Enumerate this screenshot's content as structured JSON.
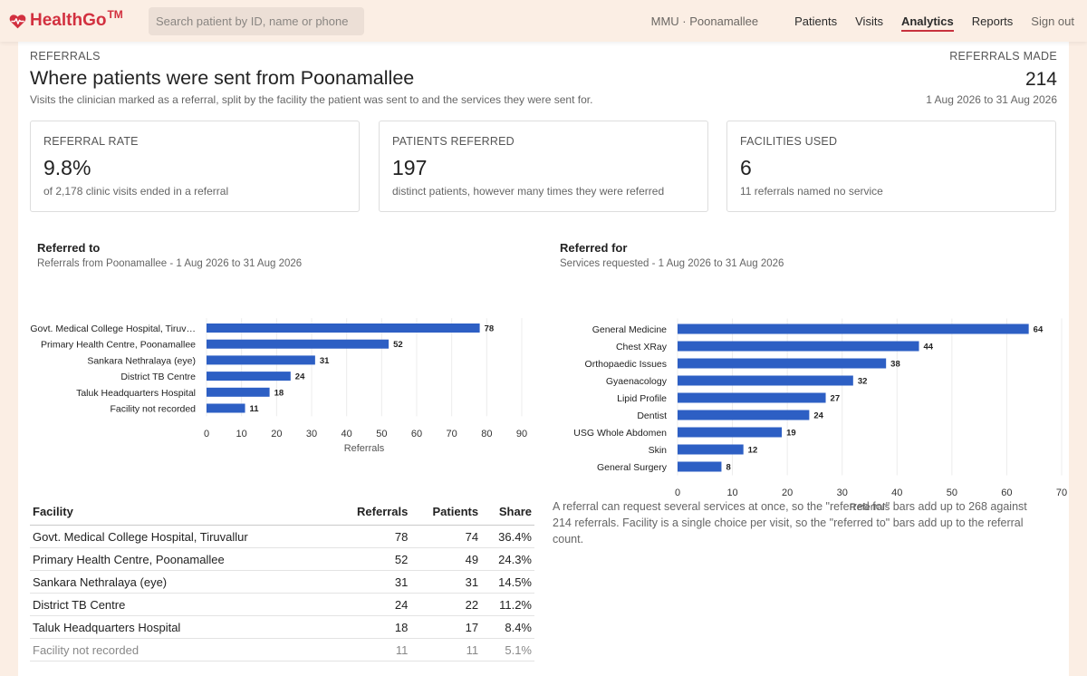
{
  "brand": {
    "name": "HealthGo",
    "tm": "TM",
    "icon": "heart-pulse-icon",
    "color": "#d2303f"
  },
  "search": {
    "placeholder": "Search patient by ID, name or phone",
    "value": ""
  },
  "nav": {
    "location": "MMU · Poonamallee",
    "items": [
      {
        "label": "Patients",
        "active": false
      },
      {
        "label": "Visits",
        "active": false
      },
      {
        "label": "Analytics",
        "active": true
      },
      {
        "label": "Reports",
        "active": false
      }
    ],
    "sign_out": "Sign out"
  },
  "header": {
    "kicker": "REFERRALS",
    "title": "Where patients were sent from Poonamallee",
    "subtitle": "Visits the clinician marked as a referral, split by the facility the patient was sent to and the services they were sent for.",
    "made_label": "REFERRALS MADE",
    "made_value": "214",
    "date_range": "1 Aug 2026 to 31 Aug 2026"
  },
  "cards": [
    {
      "label": "REFERRAL RATE",
      "value": "9.8%",
      "note": "of 2,178 clinic visits ended in a referral"
    },
    {
      "label": "PATIENTS REFERRED",
      "value": "197",
      "note": "distinct patients, however many times they were referred"
    },
    {
      "label": "FACILITIES USED",
      "value": "6",
      "note": "11 referrals named no service"
    }
  ],
  "charts": {
    "referred_to": {
      "title": "Referred to",
      "subtitle": "Referrals from Poonamallee - 1 Aug 2026 to 31 Aug 2026"
    },
    "referred_for": {
      "title": "Referred for",
      "subtitle": "Services requested - 1 Aug 2026 to 31 Aug 2026"
    }
  },
  "chart_data": [
    {
      "type": "bar",
      "orientation": "horizontal",
      "categories": [
        "Govt. Medical College Hospital, Tiruv…",
        "Primary Health Centre, Poonamallee",
        "Sankara Nethralaya (eye)",
        "District TB Centre",
        "Taluk Headquarters Hospital",
        "Facility not recorded"
      ],
      "values": [
        78,
        52,
        31,
        24,
        18,
        11
      ],
      "title": "Referred to",
      "subtitle": "Referrals from Poonamallee - 1 Aug 2026 to 31 Aug 2026",
      "xlabel": "Referrals",
      "xlim": [
        0,
        90
      ],
      "xticks": [
        0,
        10,
        20,
        30,
        40,
        50,
        60,
        70,
        80,
        90
      ],
      "grid": true,
      "data_labels": true,
      "color": "#2d5fc4"
    },
    {
      "type": "bar",
      "orientation": "horizontal",
      "categories": [
        "General Medicine",
        "Chest XRay",
        "Orthopaedic Issues",
        "Gyaenacology",
        "Lipid Profile",
        "Dentist",
        "USG Whole Abdomen",
        "Skin",
        "General Surgery"
      ],
      "values": [
        64,
        44,
        38,
        32,
        27,
        24,
        19,
        12,
        8
      ],
      "title": "Referred for",
      "subtitle": "Services requested - 1 Aug 2026 to 31 Aug 2026",
      "xlabel": "Referrals",
      "xlim": [
        0,
        70
      ],
      "xticks": [
        0,
        10,
        20,
        30,
        40,
        50,
        60,
        70
      ],
      "grid": true,
      "data_labels": true,
      "color": "#2d5fc4"
    }
  ],
  "table": {
    "headers": [
      "Facility",
      "Referrals",
      "Patients",
      "Share"
    ],
    "rows": [
      {
        "facility": "Govt. Medical College Hospital, Tiruvallur",
        "referrals": "78",
        "patients": "74",
        "share": "36.4%",
        "muted": false
      },
      {
        "facility": "Primary Health Centre, Poonamallee",
        "referrals": "52",
        "patients": "49",
        "share": "24.3%",
        "muted": false
      },
      {
        "facility": "Sankara Nethralaya (eye)",
        "referrals": "31",
        "patients": "31",
        "share": "14.5%",
        "muted": false
      },
      {
        "facility": "District TB Centre",
        "referrals": "24",
        "patients": "22",
        "share": "11.2%",
        "muted": false
      },
      {
        "facility": "Taluk Headquarters Hospital",
        "referrals": "18",
        "patients": "17",
        "share": "8.4%",
        "muted": false
      },
      {
        "facility": "Facility not recorded",
        "referrals": "11",
        "patients": "11",
        "share": "5.1%",
        "muted": true
      }
    ]
  },
  "note": "A referral can request several services at once, so the \"referred for\" bars add up to 268 against 214 referrals. Facility is a single choice per visit, so the \"referred to\" bars add up to the referral count."
}
